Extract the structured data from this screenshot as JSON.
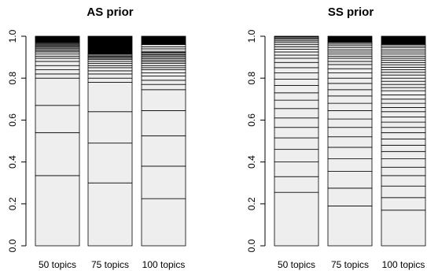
{
  "chart_data": [
    {
      "type": "bar",
      "subtype": "stacked-proportion",
      "title": "AS prior",
      "xlabel": "",
      "ylabel": "",
      "ylim": [
        0,
        1
      ],
      "yticks": [
        0.0,
        0.2,
        0.4,
        0.6,
        0.8,
        1.0
      ],
      "ytick_labels": [
        "0.0",
        "0.2",
        "0.4",
        "0.6",
        "0.8",
        "1.0"
      ],
      "grid": false,
      "colors": {
        "fill": "#eeeeee",
        "line": "#000000"
      },
      "categories": [
        "50 topics",
        "75 topics",
        "100 topics"
      ],
      "series": [
        {
          "cumulative": [
            0,
            0.335,
            0.54,
            0.67,
            0.8,
            0.82,
            0.84,
            0.86,
            0.88,
            0.895,
            0.905,
            0.915,
            0.925,
            0.93,
            0.937,
            0.943,
            0.948,
            0.953,
            0.958,
            0.962,
            0.966,
            0.97,
            0.973,
            0.976,
            0.979,
            0.982,
            0.985,
            0.988,
            0.991,
            0.994,
            0.997,
            1.0
          ]
        },
        {
          "cumulative": [
            0,
            0.3,
            0.49,
            0.64,
            0.78,
            0.8,
            0.82,
            0.835,
            0.85,
            0.86,
            0.87,
            0.88,
            0.89,
            0.895,
            0.9,
            0.905,
            0.91,
            0.915,
            1.0
          ]
        },
        {
          "cumulative": [
            0,
            0.225,
            0.38,
            0.525,
            0.645,
            0.745,
            0.77,
            0.79,
            0.81,
            0.825,
            0.84,
            0.85,
            0.86,
            0.87,
            0.878,
            0.886,
            0.893,
            0.9,
            0.906,
            0.912,
            0.918,
            0.923,
            0.928,
            0.94,
            0.95,
            0.96,
            1.0
          ]
        }
      ]
    },
    {
      "type": "bar",
      "subtype": "stacked-proportion",
      "title": "SS prior",
      "xlabel": "",
      "ylabel": "",
      "ylim": [
        0,
        1
      ],
      "yticks": [
        0.0,
        0.2,
        0.4,
        0.6,
        0.8,
        1.0
      ],
      "ytick_labels": [
        "0.0",
        "0.2",
        "0.4",
        "0.6",
        "0.8",
        "1.0"
      ],
      "grid": false,
      "colors": {
        "fill": "#eeeeee",
        "line": "#000000"
      },
      "categories": [
        "50 topics",
        "75 topics",
        "100 topics"
      ],
      "series": [
        {
          "cumulative": [
            0,
            0.255,
            0.33,
            0.4,
            0.46,
            0.515,
            0.565,
            0.61,
            0.655,
            0.695,
            0.73,
            0.765,
            0.795,
            0.825,
            0.85,
            0.875,
            0.895,
            0.91,
            0.925,
            0.938,
            0.95,
            0.96,
            0.97,
            0.978,
            0.985,
            0.991,
            0.996,
            1.0
          ]
        },
        {
          "cumulative": [
            0,
            0.19,
            0.275,
            0.355,
            0.415,
            0.47,
            0.52,
            0.565,
            0.605,
            0.645,
            0.68,
            0.715,
            0.745,
            0.775,
            0.8,
            0.825,
            0.845,
            0.865,
            0.88,
            0.895,
            0.905,
            0.915,
            0.925,
            0.935,
            0.945,
            0.955,
            0.963,
            0.97,
            1.0
          ]
        },
        {
          "cumulative": [
            0,
            0.17,
            0.23,
            0.285,
            0.335,
            0.375,
            0.415,
            0.45,
            0.48,
            0.51,
            0.54,
            0.565,
            0.59,
            0.615,
            0.64,
            0.66,
            0.68,
            0.7,
            0.72,
            0.74,
            0.755,
            0.77,
            0.785,
            0.8,
            0.815,
            0.828,
            0.84,
            0.852,
            0.864,
            0.875,
            0.885,
            0.895,
            0.905,
            0.915,
            0.925,
            0.935,
            0.945,
            0.953,
            0.96,
            1.0
          ]
        }
      ]
    }
  ]
}
